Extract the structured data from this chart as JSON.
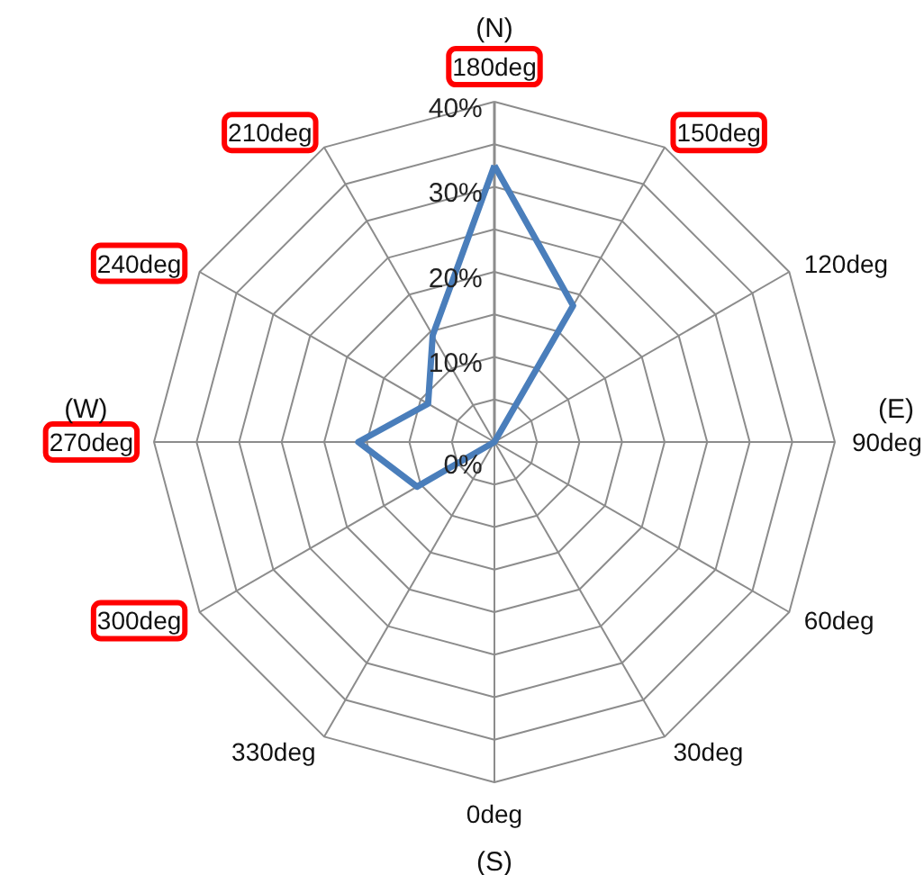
{
  "chart_data": {
    "type": "radar",
    "categories": [
      "180deg",
      "150deg",
      "120deg",
      "90deg",
      "60deg",
      "30deg",
      "0deg",
      "330deg",
      "300deg",
      "270deg",
      "240deg",
      "210deg"
    ],
    "series": [
      {
        "color": "#4a7ebb",
        "values": [
          32.5,
          18.5,
          0,
          0,
          0,
          0,
          0,
          0,
          10.5,
          16,
          9,
          14.5
        ]
      }
    ],
    "ylim": [
      0,
      40
    ],
    "yticks": [
      {
        "value": 0,
        "label": "0%"
      },
      {
        "value": 10,
        "label": "10%"
      },
      {
        "value": 20,
        "label": "20%"
      },
      {
        "value": 30,
        "label": "30%"
      },
      {
        "value": 40,
        "label": "40%"
      }
    ],
    "annotations": [
      "(N)",
      "(E)",
      "(S)",
      "(W)"
    ],
    "grid": true,
    "marker": "none",
    "line_style": "solid"
  }
}
